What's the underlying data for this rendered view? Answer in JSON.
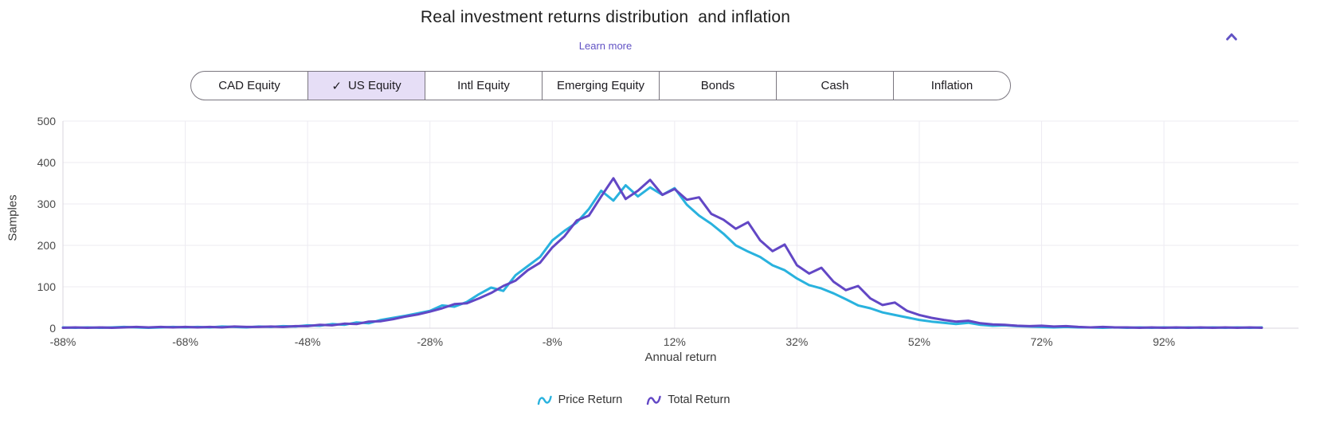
{
  "header": {
    "title": "Real investment returns distribution  and inflation",
    "learn_more_label": "Learn more",
    "collapse_icon": "chevron-up"
  },
  "tabs": {
    "check_glyph": "✓",
    "items": [
      {
        "label": "CAD Equity",
        "selected": false
      },
      {
        "label": "US Equity",
        "selected": true
      },
      {
        "label": "Intl Equity",
        "selected": false
      },
      {
        "label": "Emerging Equity",
        "selected": false
      },
      {
        "label": "Bonds",
        "selected": false
      },
      {
        "label": "Cash",
        "selected": false
      },
      {
        "label": "Inflation",
        "selected": false
      }
    ]
  },
  "chart_data": {
    "type": "line",
    "title": "Real investment returns distribution  and inflation",
    "xlabel": "Annual return",
    "ylabel": "Samples",
    "xlim": [
      -88,
      114
    ],
    "ylim": [
      0,
      500
    ],
    "grid": true,
    "legend_position": "bottom",
    "x_ticks": [
      {
        "value": -88,
        "label": "-88%"
      },
      {
        "value": -68,
        "label": "-68%"
      },
      {
        "value": -48,
        "label": "-48%"
      },
      {
        "value": -28,
        "label": "-28%"
      },
      {
        "value": -8,
        "label": "-8%"
      },
      {
        "value": 12,
        "label": "12%"
      },
      {
        "value": 32,
        "label": "32%"
      },
      {
        "value": 52,
        "label": "52%"
      },
      {
        "value": 72,
        "label": "72%"
      },
      {
        "value": 92,
        "label": "92%"
      }
    ],
    "y_ticks": [
      0,
      100,
      200,
      300,
      400,
      500
    ],
    "x_start": -88,
    "x_step": 2,
    "series": [
      {
        "name": "Price Return",
        "color": "#29b2de",
        "values": [
          2,
          1,
          2,
          1,
          2,
          3,
          2,
          1,
          2,
          3,
          2,
          3,
          2,
          4,
          3,
          2,
          4,
          3,
          5,
          4,
          7,
          6,
          10,
          8,
          14,
          12,
          20,
          25,
          30,
          36,
          42,
          55,
          52,
          63,
          82,
          98,
          90,
          128,
          150,
          172,
          212,
          235,
          255,
          288,
          332,
          308,
          345,
          318,
          340,
          322,
          338,
          298,
          272,
          252,
          228,
          200,
          185,
          172,
          152,
          140,
          120,
          104,
          96,
          84,
          70,
          55,
          48,
          38,
          32,
          26,
          20,
          16,
          13,
          10,
          13,
          8,
          6,
          7,
          5,
          4,
          3,
          2,
          3,
          2,
          2,
          1,
          2,
          1,
          2,
          1,
          2,
          1,
          2,
          1,
          2,
          1,
          2,
          1,
          2
        ]
      },
      {
        "name": "Total Return",
        "color": "#6247c5",
        "values": [
          1,
          2,
          1,
          2,
          1,
          2,
          3,
          2,
          3,
          2,
          3,
          2,
          3,
          2,
          4,
          3,
          3,
          4,
          3,
          5,
          5,
          8,
          7,
          11,
          10,
          16,
          17,
          22,
          28,
          33,
          40,
          48,
          58,
          60,
          72,
          85,
          102,
          115,
          140,
          158,
          195,
          222,
          260,
          272,
          318,
          362,
          312,
          332,
          358,
          322,
          336,
          310,
          316,
          276,
          262,
          240,
          256,
          212,
          186,
          202,
          152,
          132,
          146,
          112,
          92,
          102,
          72,
          56,
          62,
          42,
          32,
          25,
          20,
          16,
          18,
          12,
          9,
          8,
          6,
          5,
          6,
          4,
          5,
          3,
          2,
          3,
          2,
          2,
          1,
          2,
          1,
          2,
          1,
          2,
          1,
          2,
          1,
          2,
          1
        ]
      }
    ]
  },
  "colors": {
    "accent_purple": "#6152c4",
    "tab_selected_bg": "#e6def6",
    "tab_border": "#7a767f",
    "grid_line": "#edebf2",
    "axis_line": "#d8d5de",
    "tick_text": "#4a4a4a",
    "title_text": "#1f1f1f"
  }
}
